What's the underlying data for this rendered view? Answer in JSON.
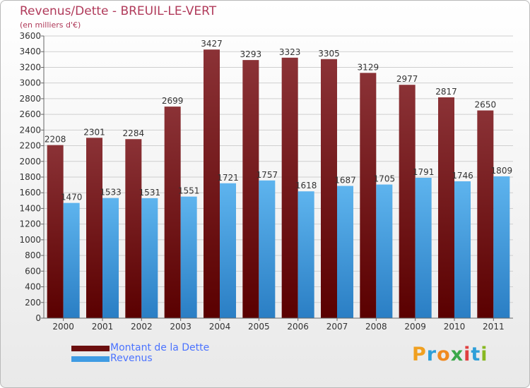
{
  "title": "Revenus/Dette - BREUIL-LE-VERT",
  "subtitle": "(en milliers d'€)",
  "logo": [
    "P",
    "r",
    "o",
    "x",
    "i",
    "t",
    "i"
  ],
  "colors": {
    "debt_top": "#8b3236",
    "debt_bottom": "#5a0000",
    "revenue_top": "#5eb4ee",
    "revenue_bottom": "#2a7ec4",
    "title": "#b03a5a",
    "legend_text": "#4b73ff"
  },
  "legend": [
    {
      "label": "Montant de la Dette",
      "color": "#6b0e0e"
    },
    {
      "label": "Revenus",
      "color": "#3f9be3"
    }
  ],
  "chart_data": {
    "type": "bar",
    "categories": [
      "2000",
      "2001",
      "2002",
      "2003",
      "2004",
      "2005",
      "2006",
      "2007",
      "2008",
      "2009",
      "2010",
      "2011"
    ],
    "series": [
      {
        "name": "Montant de la Dette",
        "values": [
          2208,
          2301,
          2284,
          2699,
          3427,
          3293,
          3323,
          3305,
          3129,
          2977,
          2817,
          2650
        ]
      },
      {
        "name": "Revenus",
        "values": [
          1470,
          1533,
          1531,
          1551,
          1721,
          1757,
          1618,
          1687,
          1705,
          1791,
          1746,
          1809
        ]
      }
    ],
    "ylim": [
      0,
      3600
    ],
    "yticks": [
      0,
      200,
      400,
      600,
      800,
      1000,
      1200,
      1400,
      1600,
      1800,
      2000,
      2200,
      2400,
      2600,
      2800,
      3000,
      3200,
      3400,
      3600
    ],
    "grid": true,
    "legend_position": "bottom-left"
  }
}
